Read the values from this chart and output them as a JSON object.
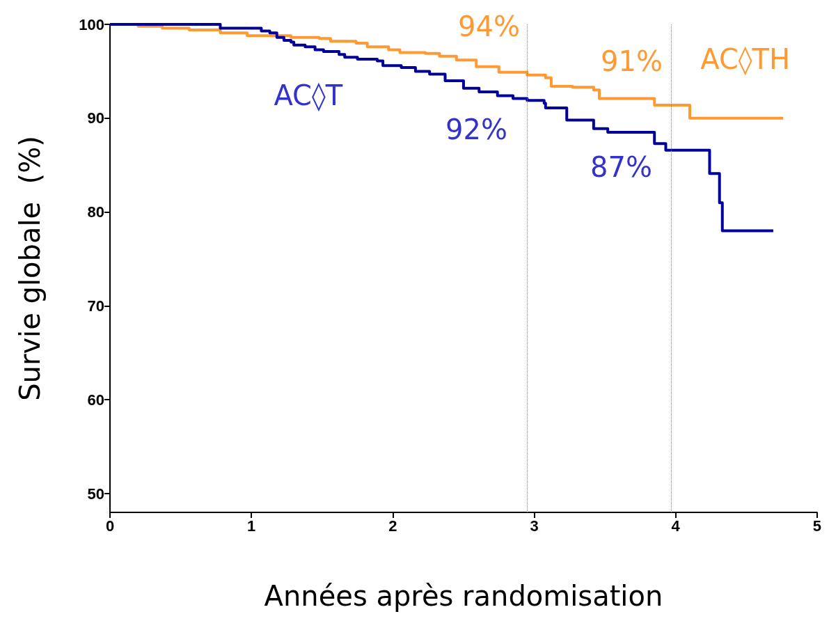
{
  "chart_data": {
    "type": "step",
    "xlabel": "Années après randomisation",
    "ylabel": "Survie globale  (%)",
    "xlim": [
      0,
      5
    ],
    "xticks": [
      0,
      1,
      2,
      3,
      4,
      5
    ],
    "ylim": [
      48,
      100
    ],
    "yticks": [
      50,
      60,
      70,
      80,
      90,
      100
    ],
    "annotations": [
      "94%",
      "91%",
      "92%",
      "87%"
    ],
    "grid": false,
    "legend": false,
    "marker": "none",
    "line_style": "solid",
    "ref_lines": [
      {
        "axis": "x",
        "value": 2.95,
        "color": "#808080",
        "line_style": "dotted"
      },
      {
        "axis": "x",
        "value": 3.97,
        "color": "#808080",
        "line_style": "dotted"
      }
    ],
    "series": [
      {
        "name": "AC◊TH",
        "color": "#ff9933",
        "x": [
          0,
          0.2,
          0.37,
          0.56,
          0.78,
          0.97,
          1.28,
          1.48,
          1.56,
          1.74,
          1.82,
          1.97,
          2.05,
          2.23,
          2.33,
          2.45,
          2.59,
          2.75,
          2.95,
          3.08,
          3.12,
          3.27,
          3.42,
          3.46,
          3.85,
          4.1,
          4.76
        ],
        "values": [
          100,
          99.8,
          99.6,
          99.4,
          99.1,
          98.8,
          98.6,
          98.5,
          98.2,
          98.0,
          97.6,
          97.3,
          97.0,
          96.9,
          96.6,
          96.2,
          95.5,
          94.9,
          94.6,
          94.3,
          93.4,
          93.3,
          93.0,
          92.1,
          91.4,
          90.0,
          90.0
        ]
      },
      {
        "name": "AC◊T",
        "color": "#000099",
        "x": [
          0,
          0.78,
          1.07,
          1.13,
          1.18,
          1.23,
          1.28,
          1.3,
          1.38,
          1.45,
          1.51,
          1.62,
          1.66,
          1.75,
          1.89,
          1.93,
          2.06,
          2.16,
          2.26,
          2.37,
          2.5,
          2.61,
          2.74,
          2.85,
          2.95,
          3.07,
          3.08,
          3.23,
          3.42,
          3.52,
          3.85,
          3.93,
          4.24,
          4.31,
          4.33,
          4.69
        ],
        "values": [
          100,
          99.6,
          99.3,
          99.1,
          98.6,
          98.3,
          98.1,
          97.8,
          97.6,
          97.3,
          97.1,
          96.8,
          96.5,
          96.3,
          96.1,
          95.6,
          95.4,
          95.0,
          94.7,
          94.0,
          93.2,
          92.8,
          92.4,
          92.1,
          91.9,
          91.6,
          91.1,
          89.8,
          88.9,
          88.5,
          87.3,
          86.6,
          84.1,
          81.0,
          78.0,
          78.0
        ]
      }
    ]
  }
}
